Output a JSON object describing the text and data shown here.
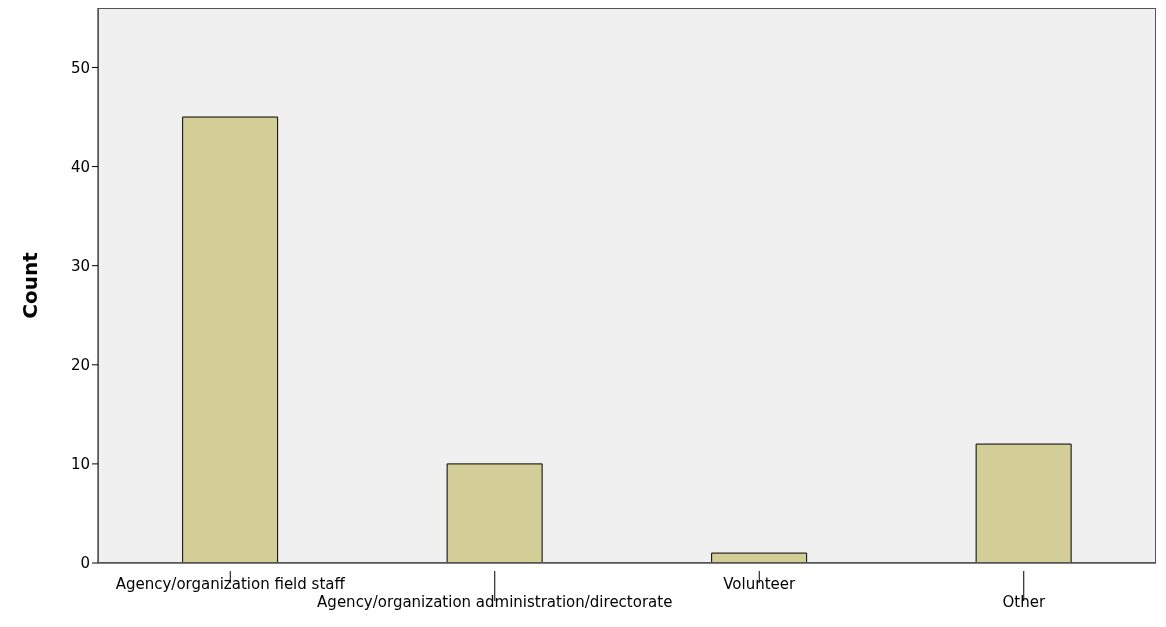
{
  "chart_data": {
    "type": "bar",
    "ylabel": "Count",
    "categories": [
      "Agency/organization field staff",
      "Agency/organization administration/directorate",
      "Volunteer",
      "Other"
    ],
    "values": [
      45,
      10,
      1,
      12
    ],
    "color": "#d3ce97",
    "ylim": [
      0,
      56
    ],
    "yticks": [
      0,
      10,
      20,
      30,
      40,
      50
    ],
    "grid": false
  }
}
